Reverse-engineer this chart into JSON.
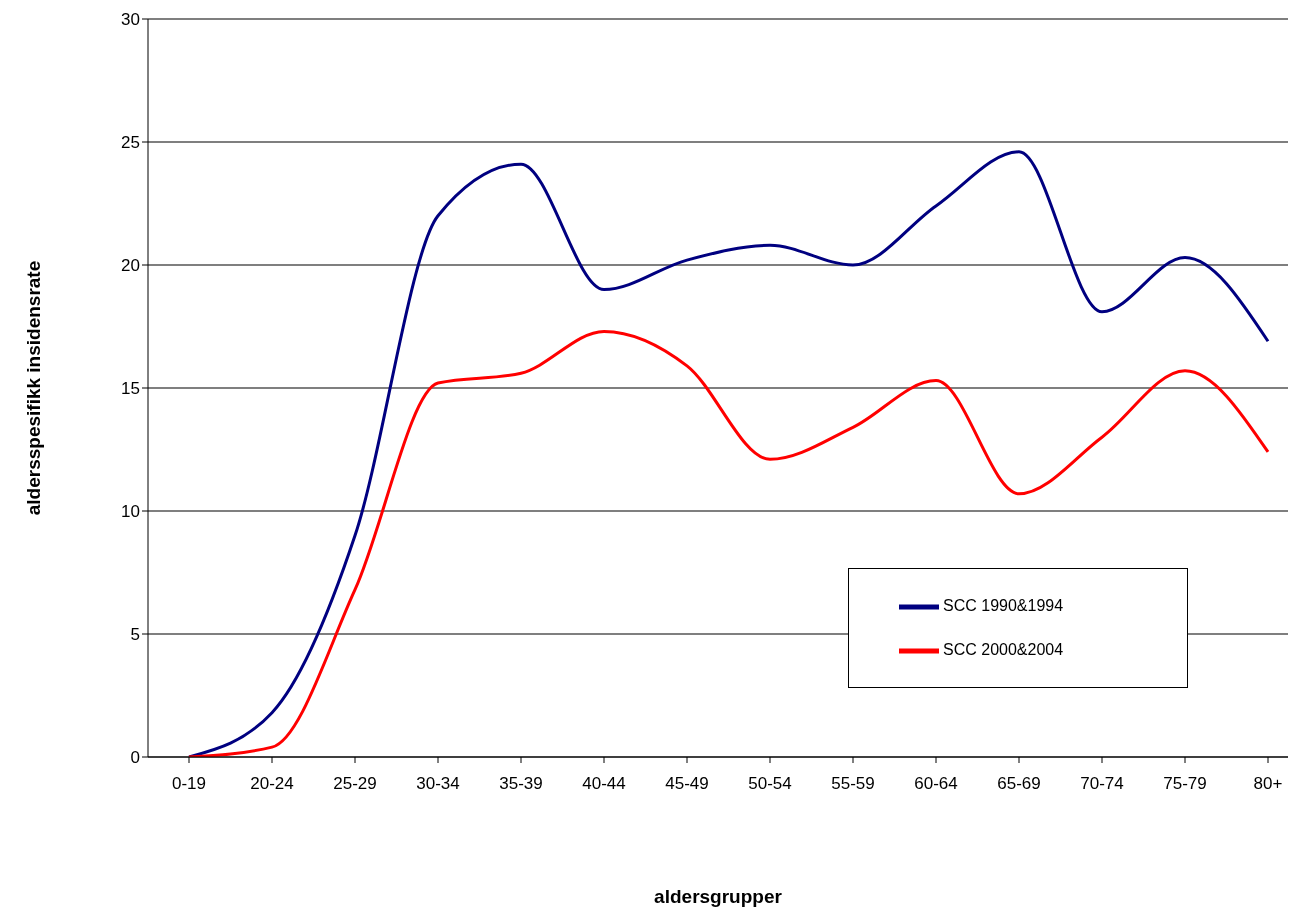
{
  "chart_data": {
    "type": "line",
    "xlabel": "aldersgrupper",
    "ylabel": "aldersspesifikk insidensrate",
    "categories": [
      "0-19",
      "20-24",
      "25-29",
      "30-34",
      "35-39",
      "40-44",
      "45-49",
      "50-54",
      "55-59",
      "60-64",
      "65-69",
      "70-74",
      "75-79",
      "80+"
    ],
    "series": [
      {
        "name": "SCC 1990&1994",
        "color": "#000080",
        "values": [
          0,
          1.8,
          9,
          22,
          24.1,
          19,
          20.2,
          20.8,
          20,
          22.4,
          24.6,
          18.1,
          20.3,
          16.9
        ]
      },
      {
        "name": "SCC 2000&2004",
        "color": "#ff0000",
        "values": [
          0,
          0.4,
          6.8,
          15.2,
          15.6,
          17.3,
          15.9,
          12.1,
          13.4,
          15.3,
          10.7,
          13,
          15.7,
          12.4
        ]
      }
    ],
    "ylim": [
      0,
      30
    ],
    "yticks": [
      0,
      5,
      10,
      15,
      20,
      25,
      30
    ],
    "grid": "y",
    "legend": "bottom right",
    "marker": "none",
    "line_style": "solid"
  }
}
